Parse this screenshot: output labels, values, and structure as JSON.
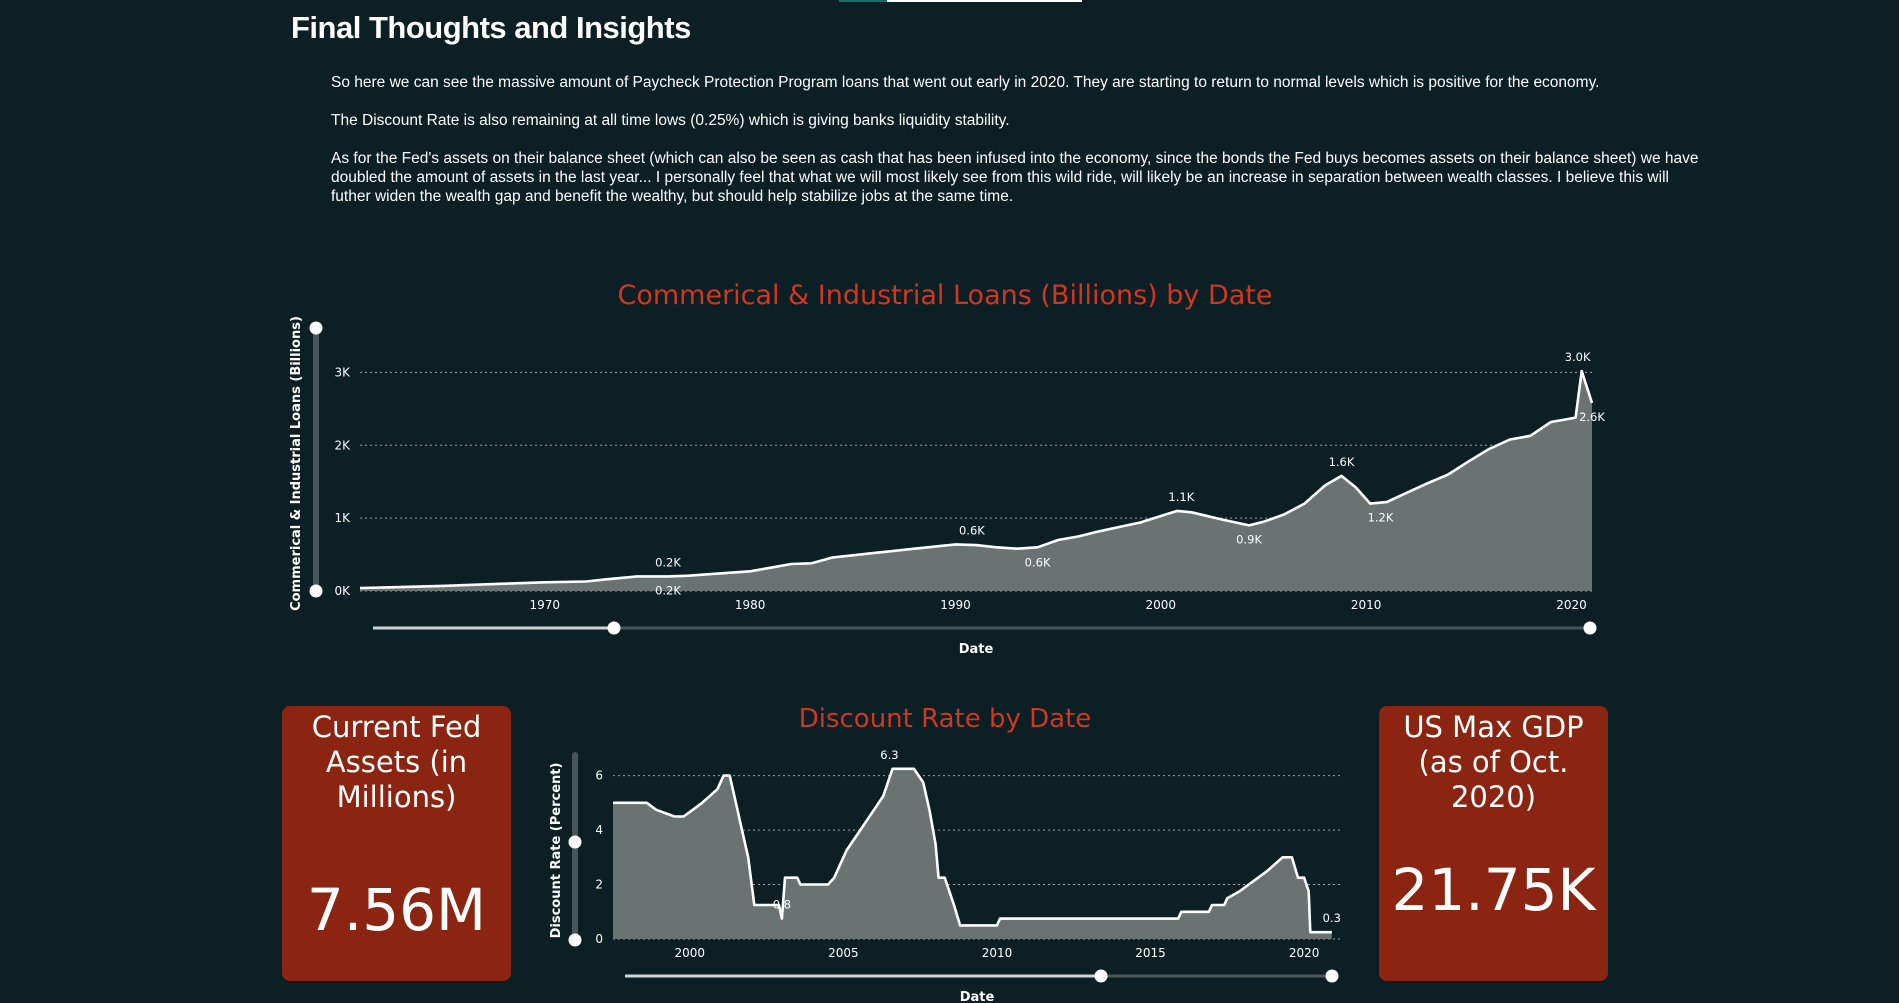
{
  "header": {
    "title": "Final Thoughts and Insights",
    "paragraphs": [
      "So here we can see the massive amount of Paycheck Protection Program loans that went out early in 2020. They are starting to return to normal levels which is positive for the economy.",
      "The Discount Rate is also remaining at all time lows (0.25%) which is giving banks liquidity stability.",
      "As for the Fed's assets on their balance sheet (which can also be seen as cash that has been infused into the economy, since the bonds the Fed buys becomes assets on their balance sheet) we have doubled the amount of assets in the last year... I personally feel that what we will most likely see from this wild ride, will likely be an increase in separation between wealth classes. I believe this will futher widen the wealth gap and benefit the wealthy, but should help stabilize jobs at the same time."
    ]
  },
  "kpis": {
    "fed_assets": {
      "label": "Current Fed Assets (in Millions)",
      "value": "7.56M"
    },
    "gdp": {
      "label": "US Max GDP (as of Oct. 2020)",
      "value": "21.75K"
    }
  },
  "colors": {
    "background": "#0b1f24",
    "title_red": "#d0381d",
    "card_red": "#8b2410",
    "area_fill": "#6b7272"
  },
  "chart_data": [
    {
      "type": "area",
      "title": "Commerical & Industrial Loans (Billions) by Date",
      "xlabel": "Date",
      "ylabel": "Commerical & Industrial Loans (Billions)",
      "xlim": [
        1961.0,
        2021.0
      ],
      "ylim": [
        0,
        3500
      ],
      "x_ticks": [
        1970,
        1980,
        1990,
        2000,
        2010,
        2020
      ],
      "x_tick_labels": [
        "1970",
        "1980",
        "1990",
        "2000",
        "2010",
        "2020"
      ],
      "y_ticks": [
        0,
        1000,
        2000,
        3000
      ],
      "y_tick_labels": [
        "0K",
        "1K",
        "2K",
        "3K"
      ],
      "grid": true,
      "x": [
        1961,
        1965,
        1968,
        1970,
        1972,
        1973,
        1974.5,
        1976,
        1977,
        1978,
        1980,
        1981,
        1982,
        1983,
        1984,
        1985,
        1986,
        1988,
        1990,
        1991,
        1992,
        1993,
        1994,
        1995,
        1996,
        1997,
        1998,
        1999,
        2000,
        2000.8,
        2001.5,
        2003,
        2004.3,
        2005,
        2006,
        2007,
        2008,
        2008.8,
        2009.5,
        2010.2,
        2011,
        2012,
        2013,
        2014,
        2015,
        2016,
        2017,
        2018,
        2019,
        2019.8,
        2020.2,
        2020.5,
        2021
      ],
      "values": [
        40,
        70,
        100,
        120,
        130,
        160,
        200,
        200,
        210,
        230,
        270,
        320,
        370,
        380,
        460,
        490,
        520,
        580,
        640,
        630,
        600,
        580,
        600,
        700,
        750,
        820,
        880,
        940,
        1030,
        1100,
        1080,
        980,
        900,
        950,
        1050,
        1200,
        1450,
        1580,
        1420,
        1200,
        1220,
        1350,
        1480,
        1600,
        1780,
        1950,
        2080,
        2130,
        2320,
        2360,
        2380,
        3020,
        2580
      ],
      "data_labels": [
        {
          "x": 1976,
          "y": 200,
          "text": "0.2K",
          "pos": "above"
        },
        {
          "x": 1976,
          "y": 200,
          "text": "0.2K",
          "pos": "below"
        },
        {
          "x": 1990.8,
          "y": 640,
          "text": "0.6K",
          "pos": "above"
        },
        {
          "x": 1994,
          "y": 580,
          "text": "0.6K",
          "pos": "below"
        },
        {
          "x": 2001,
          "y": 1100,
          "text": "1.1K",
          "pos": "above"
        },
        {
          "x": 2004.3,
          "y": 900,
          "text": "0.9K",
          "pos": "below"
        },
        {
          "x": 2008.8,
          "y": 1580,
          "text": "1.6K",
          "pos": "above"
        },
        {
          "x": 2010.7,
          "y": 1200,
          "text": "1.2K",
          "pos": "below"
        },
        {
          "x": 2020.3,
          "y": 3020,
          "text": "3.0K",
          "pos": "above"
        },
        {
          "x": 2021,
          "y": 2580,
          "text": "2.6K",
          "pos": "below"
        }
      ]
    },
    {
      "type": "area",
      "title": "Discount Rate by Date",
      "xlabel": "Date",
      "ylabel": "Discount Rate (Percent)",
      "xlim": [
        1997.5,
        2021.2
      ],
      "ylim": [
        0,
        6.5
      ],
      "x_ticks": [
        2000,
        2005,
        2010,
        2015,
        2020
      ],
      "x_tick_labels": [
        "2000",
        "2005",
        "2010",
        "2015",
        "2020"
      ],
      "y_ticks": [
        0,
        2,
        4,
        6
      ],
      "y_tick_labels": [
        "0",
        "2",
        "4",
        "6"
      ],
      "grid": true,
      "x": [
        1997.5,
        1998.6,
        1998.9,
        1999.5,
        1999.8,
        2000.1,
        2000.4,
        2000.9,
        2001.1,
        2001.3,
        2001.5,
        2001.7,
        2001.9,
        2002.1,
        2002.9,
        2003.0,
        2003.1,
        2003.5,
        2003.6,
        2004.5,
        2004.7,
        2004.9,
        2005.1,
        2005.4,
        2005.7,
        2006.0,
        2006.3,
        2006.6,
        2007.3,
        2007.6,
        2007.8,
        2008.0,
        2008.1,
        2008.3,
        2008.6,
        2008.8,
        2008.9,
        2009.0,
        2010.0,
        2010.1,
        2015.9,
        2016.0,
        2016.9,
        2017.0,
        2017.4,
        2017.5,
        2017.9,
        2018.2,
        2018.5,
        2018.8,
        2019.3,
        2019.6,
        2019.8,
        2020.0,
        2020.15,
        2020.2,
        2020.9
      ],
      "values": [
        5.0,
        5.0,
        4.75,
        4.5,
        4.5,
        4.75,
        5.0,
        5.5,
        6.0,
        6.0,
        5.0,
        4.0,
        3.0,
        1.25,
        1.25,
        0.75,
        2.25,
        2.25,
        2.0,
        2.0,
        2.25,
        2.75,
        3.25,
        3.75,
        4.25,
        4.75,
        5.25,
        6.25,
        6.25,
        5.75,
        4.75,
        3.5,
        2.25,
        2.25,
        1.25,
        0.5,
        0.5,
        0.5,
        0.5,
        0.75,
        0.75,
        1.0,
        1.0,
        1.25,
        1.25,
        1.5,
        1.75,
        2.0,
        2.25,
        2.5,
        3.0,
        3.0,
        2.25,
        2.25,
        1.75,
        0.25,
        0.25
      ],
      "data_labels": [
        {
          "x": 2003.0,
          "y": 0.75,
          "text": "0.8",
          "pos": "above"
        },
        {
          "x": 2006.5,
          "y": 6.25,
          "text": "6.3",
          "pos": "above"
        },
        {
          "x": 2020.9,
          "y": 0.25,
          "text": "0.3",
          "pos": "above"
        }
      ]
    }
  ]
}
